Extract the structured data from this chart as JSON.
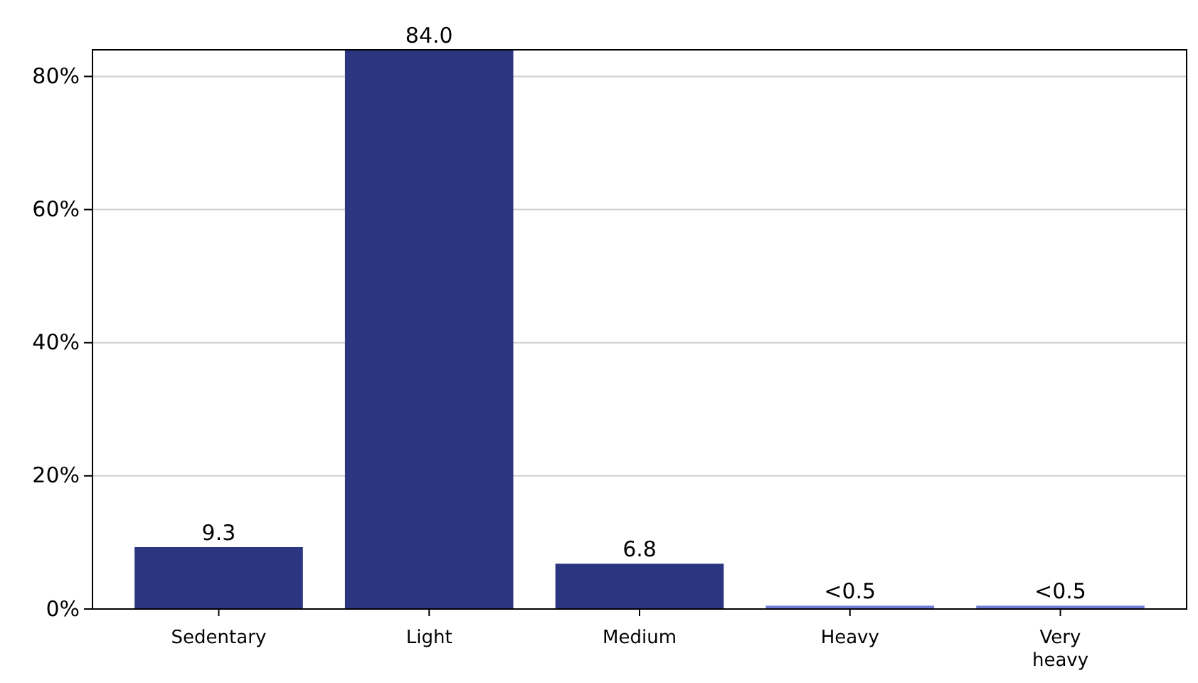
{
  "chart_data": {
    "type": "bar",
    "categories": [
      "Sedentary",
      "Light",
      "Medium",
      "Heavy",
      "Very heavy"
    ],
    "values": [
      9.3,
      84.0,
      6.8,
      0.5,
      0.5
    ],
    "colors": [
      "#2b3580",
      "#2b3580",
      "#2b3580",
      "#6f7fd8",
      "#6f7fd8"
    ],
    "value_labels": [
      "9.3",
      "84.0",
      "6.8",
      "<0.5",
      "<0.5"
    ],
    "ylim": [
      0,
      84
    ],
    "yticks": [
      {
        "value": 0,
        "label": "0%"
      },
      {
        "value": 20,
        "label": "20%"
      },
      {
        "value": 40,
        "label": "40%"
      },
      {
        "value": 60,
        "label": "60%"
      },
      {
        "value": 80,
        "label": "80%"
      }
    ],
    "grid": "y"
  }
}
